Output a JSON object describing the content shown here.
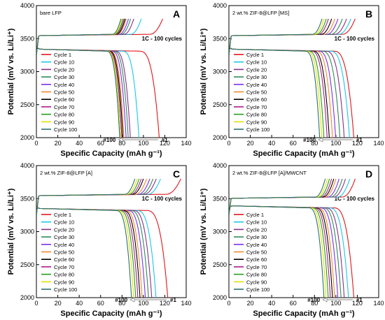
{
  "figure": {
    "colors": {
      "axis": "#000000",
      "cycle_colors": [
        "#e4141b",
        "#18c8e8",
        "#8d2e87",
        "#2e8b57",
        "#7b2ff0",
        "#f28a2b",
        "#000000",
        "#b01a8a",
        "#21a01a",
        "#e0e000",
        "#2f7070"
      ]
    }
  },
  "chart_data": [
    {
      "panel": "A",
      "type": "line",
      "legend_order": "descending",
      "annotation": "bare LFP",
      "subtitle": "1C - 100 cycles",
      "ylabel": "Potential  (mV vs. Li/Li⁺)",
      "xlabel": "Specific Capacity  (mAh g⁻¹)",
      "xlim": [
        0,
        140
      ],
      "ylim": [
        2000,
        4000
      ],
      "xticks": [
        "0",
        "20",
        "40",
        "60",
        "80",
        "100",
        "120",
        "140"
      ],
      "yticks": [
        "2000",
        "2500",
        "3000",
        "3500",
        "4000"
      ],
      "markers": {
        "first": "#1",
        "last": "#100"
      },
      "legend": [
        "Cycle 1",
        "Cycle 10",
        "Cycle 20",
        "Cycle 30",
        "Cycle 40",
        "Cycle 50",
        "Cycle 60",
        "Cycle 70",
        "Cycle 80",
        "Cycle 90",
        "Cycle 100"
      ],
      "discharge_capacity": [
        115,
        96,
        88,
        86,
        84,
        82,
        81,
        80,
        79,
        79,
        78
      ],
      "charge_capacity": [
        118,
        98,
        91,
        88,
        86,
        84,
        83,
        82,
        81,
        80,
        79
      ],
      "charge_plateau": 3560,
      "discharge_plateau": 3320,
      "charge_end": 3800,
      "discharge_end": 1950
    },
    {
      "panel": "B",
      "type": "line",
      "legend_order": "descending",
      "annotation": "2 wt.% ZIF-8@LFP [MS]",
      "subtitle": "1C - 100 cycles",
      "ylabel": "Potential  (mV vs. Li/Li⁺)",
      "xlabel": "Specific Capacity  (mAh g⁻¹)",
      "xlim": [
        0,
        140
      ],
      "ylim": [
        2000,
        4000
      ],
      "xticks": [
        "0",
        "20",
        "40",
        "60",
        "80",
        "100",
        "120",
        "140"
      ],
      "yticks": [
        "2000",
        "2500",
        "3000",
        "3500",
        "4000"
      ],
      "markers": {
        "first": "#1",
        "last": "#100"
      },
      "legend": [
        "Cycle 1",
        "Cycle 10",
        "Cycle 20",
        "Cycle 30",
        "Cycle 40",
        "Cycle 50",
        "Cycle 60",
        "Cycle 70",
        "Cycle 80",
        "Cycle 90",
        "Cycle 100"
      ],
      "discharge_capacity": [
        117,
        113,
        108,
        104,
        100,
        97,
        94,
        92,
        89,
        87,
        85
      ],
      "charge_capacity": [
        118,
        114,
        110,
        106,
        102,
        99,
        96,
        93,
        91,
        89,
        87
      ],
      "charge_plateau": 3560,
      "discharge_plateau": 3320,
      "charge_end": 3800,
      "discharge_end": 1950
    },
    {
      "panel": "C",
      "type": "line",
      "legend_order": "ascending",
      "annotation": "2 wt.% ZIF-8@LFP [A]",
      "subtitle": "1C - 100 cycles",
      "ylabel": "Potential  (mV vs. Li/Li⁺)",
      "xlabel": "Specific Capacity  (mAh g⁻¹)",
      "xlim": [
        0,
        140
      ],
      "ylim": [
        2000,
        4000
      ],
      "xticks": [
        "0",
        "20",
        "40",
        "60",
        "80",
        "100",
        "120",
        "140"
      ],
      "yticks": [
        "2000",
        "2500",
        "3000",
        "3500",
        "4000"
      ],
      "markers": {
        "first": "#1",
        "last": "#100"
      },
      "legend": [
        "Cycle 1",
        "Cycle 10",
        "Cycle 20",
        "Cycle 30",
        "Cycle 40",
        "Cycle 50",
        "Cycle 60",
        "Cycle 70",
        "Cycle 80",
        "Cycle 90",
        "Cycle 100"
      ],
      "discharge_capacity": [
        123,
        112,
        108,
        105,
        102,
        99,
        97,
        95,
        93,
        91,
        89
      ],
      "charge_capacity": [
        135,
        116,
        112,
        109,
        106,
        103,
        100,
        98,
        96,
        94,
        92
      ],
      "charge_plateau": 3560,
      "discharge_plateau": 3330,
      "charge_end": 3800,
      "discharge_end": 1950
    },
    {
      "panel": "D",
      "type": "line",
      "legend_order": "ascending",
      "annotation": "2 wt.% ZIF-8@LFP [A]/MWCNT",
      "subtitle": "1C - 100 cycles",
      "ylabel": "Potential  (mV vs. Li/Li⁺)",
      "xlabel": "Specific Capacity  (mAh g⁻¹)",
      "xlim": [
        0,
        140
      ],
      "ylim": [
        2000,
        4000
      ],
      "xticks": [
        "0",
        "20",
        "40",
        "60",
        "80",
        "100",
        "120",
        "140"
      ],
      "yticks": [
        "2000",
        "2500",
        "3000",
        "3500",
        "4000"
      ],
      "markers": {
        "first": "#1",
        "last": "#100"
      },
      "legend": [
        "Cycle 1",
        "Cycle 10",
        "Cycle 20",
        "Cycle 30",
        "Cycle 40",
        "Cycle 50",
        "Cycle 60",
        "Cycle 70",
        "Cycle 80",
        "Cycle 90",
        "Cycle 100"
      ],
      "discharge_capacity": [
        117,
        112,
        108,
        105,
        102,
        99,
        97,
        95,
        93,
        91,
        89
      ],
      "charge_capacity": [
        118,
        113,
        109,
        106,
        103,
        100,
        98,
        96,
        94,
        92,
        90
      ],
      "charge_plateau": 3520,
      "discharge_plateau": 3370,
      "charge_end": 3800,
      "discharge_end": 1950
    }
  ]
}
